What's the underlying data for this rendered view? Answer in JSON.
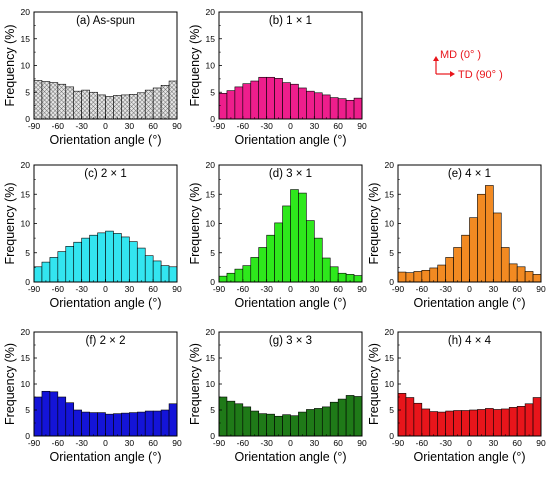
{
  "annotation": {
    "md_label": "MD (0°  )",
    "td_label": "TD (90°  )",
    "color": "#e8151b"
  },
  "chart_data": [
    {
      "type": "bar",
      "title": "(a) As-spun",
      "xlabel": "Orientation angle (°)",
      "ylabel": "Frequency (%)",
      "xlim": [
        -90,
        90
      ],
      "ylim": [
        0,
        20
      ],
      "xticks": [
        "-90",
        "-60",
        "-30",
        "0",
        "30",
        "60",
        "90"
      ],
      "yticks": [
        "0",
        "5",
        "10",
        "15",
        "20"
      ],
      "x": [
        -85,
        -75,
        -65,
        -55,
        -45,
        -35,
        -25,
        -15,
        -5,
        5,
        15,
        25,
        35,
        45,
        55,
        65,
        75,
        85
      ],
      "values": [
        7.2,
        7.0,
        6.8,
        6.5,
        6.0,
        5.2,
        5.4,
        5.0,
        4.5,
        4.2,
        4.4,
        4.5,
        4.6,
        4.9,
        5.4,
        5.8,
        6.3,
        7.1
      ],
      "color": "#d9d9d9",
      "pattern": "crosshatch"
    },
    {
      "type": "bar",
      "title": "(b) 1 × 1",
      "xlabel": "Orientation angle (°)",
      "ylabel": "Frequency (%)",
      "xlim": [
        -90,
        90
      ],
      "ylim": [
        0,
        20
      ],
      "xticks": [
        "-90",
        "-60",
        "-30",
        "0",
        "30",
        "60",
        "90"
      ],
      "yticks": [
        "0",
        "5",
        "10",
        "15",
        "20"
      ],
      "x": [
        -85,
        -75,
        -65,
        -55,
        -45,
        -35,
        -25,
        -15,
        -5,
        5,
        15,
        25,
        35,
        45,
        55,
        65,
        75,
        85
      ],
      "values": [
        4.8,
        5.3,
        6.0,
        6.6,
        7.1,
        7.8,
        7.8,
        7.6,
        6.8,
        6.5,
        5.8,
        5.2,
        4.9,
        4.5,
        4.0,
        3.8,
        3.5,
        3.9
      ],
      "color": "#ee1e8c"
    },
    {
      "type": "bar",
      "title": "(c) 2 × 1",
      "xlabel": "Orientation angle (°)",
      "ylabel": "Frequency (%)",
      "xlim": [
        -90,
        90
      ],
      "ylim": [
        0,
        20
      ],
      "xticks": [
        "-90",
        "-60",
        "-30",
        "0",
        "30",
        "60",
        "90"
      ],
      "yticks": [
        "0",
        "5",
        "10",
        "15",
        "20"
      ],
      "x": [
        -85,
        -75,
        -65,
        -55,
        -45,
        -35,
        -25,
        -15,
        -5,
        5,
        15,
        25,
        35,
        45,
        55,
        65,
        75,
        85
      ],
      "values": [
        2.6,
        3.4,
        4.2,
        5.2,
        6.1,
        6.8,
        7.5,
        8.0,
        8.4,
        8.7,
        8.3,
        7.7,
        6.9,
        5.8,
        4.5,
        3.6,
        2.8,
        2.6
      ],
      "color": "#33e5f0"
    },
    {
      "type": "bar",
      "title": "(d) 3 × 1",
      "xlabel": "Orientation angle (°)",
      "ylabel": "Frequency (%)",
      "xlim": [
        -90,
        90
      ],
      "ylim": [
        0,
        20
      ],
      "xticks": [
        "-90",
        "-60",
        "-30",
        "0",
        "30",
        "60",
        "90"
      ],
      "yticks": [
        "0",
        "5",
        "10",
        "15",
        "20"
      ],
      "x": [
        -85,
        -75,
        -65,
        -55,
        -45,
        -35,
        -25,
        -15,
        -5,
        5,
        15,
        25,
        35,
        45,
        55,
        65,
        75,
        85
      ],
      "values": [
        1.0,
        1.5,
        2.2,
        2.8,
        4.2,
        5.9,
        8.0,
        10.1,
        13.0,
        15.8,
        15.2,
        10.5,
        7.5,
        4.1,
        2.6,
        1.5,
        1.3,
        1.1
      ],
      "color": "#2ee81c"
    },
    {
      "type": "bar",
      "title": "(e) 4 × 1",
      "xlabel": "Orientation angle (°)",
      "ylabel": "Frequency (%)",
      "xlim": [
        -90,
        90
      ],
      "ylim": [
        0,
        20
      ],
      "xticks": [
        "-90",
        "-60",
        "-30",
        "0",
        "30",
        "60",
        "90"
      ],
      "yticks": [
        "0",
        "5",
        "10",
        "15",
        "20"
      ],
      "x": [
        -85,
        -75,
        -65,
        -55,
        -45,
        -35,
        -25,
        -15,
        -5,
        5,
        15,
        25,
        35,
        45,
        55,
        65,
        75,
        85
      ],
      "values": [
        1.7,
        1.6,
        1.8,
        2.0,
        2.4,
        2.9,
        4.2,
        5.9,
        8.0,
        11.0,
        15.0,
        16.5,
        11.8,
        5.9,
        3.1,
        2.6,
        1.8,
        1.3
      ],
      "color": "#f28a22"
    },
    {
      "type": "bar",
      "title": "(f) 2 × 2",
      "xlabel": "Orientation angle (°)",
      "ylabel": "Frequency (%)",
      "xlim": [
        -90,
        90
      ],
      "ylim": [
        0,
        20
      ],
      "xticks": [
        "-90",
        "-60",
        "-30",
        "0",
        "30",
        "60",
        "90"
      ],
      "yticks": [
        "0",
        "5",
        "10",
        "15",
        "20"
      ],
      "x": [
        -85,
        -75,
        -65,
        -55,
        -45,
        -35,
        -25,
        -15,
        -5,
        5,
        15,
        25,
        35,
        45,
        55,
        65,
        75,
        85
      ],
      "values": [
        7.5,
        8.6,
        8.5,
        7.5,
        6.4,
        5.0,
        4.6,
        4.5,
        4.5,
        4.2,
        4.3,
        4.4,
        4.5,
        4.6,
        4.8,
        4.8,
        5.0,
        6.2
      ],
      "color": "#1414d8"
    },
    {
      "type": "bar",
      "title": "(g) 3 × 3",
      "xlabel": "Orientation angle (°)",
      "ylabel": "Frequency (%)",
      "xlim": [
        -90,
        90
      ],
      "ylim": [
        0,
        20
      ],
      "xticks": [
        "-90",
        "-60",
        "-30",
        "0",
        "30",
        "60",
        "90"
      ],
      "yticks": [
        "0",
        "5",
        "10",
        "15",
        "20"
      ],
      "x": [
        -85,
        -75,
        -65,
        -55,
        -45,
        -35,
        -25,
        -15,
        -5,
        5,
        15,
        25,
        35,
        45,
        55,
        65,
        75,
        85
      ],
      "values": [
        7.5,
        6.7,
        6.2,
        5.6,
        4.8,
        4.3,
        4.2,
        3.8,
        4.1,
        3.9,
        4.6,
        5.1,
        5.3,
        5.6,
        6.5,
        7.1,
        7.8,
        7.6
      ],
      "color": "#1f7a18"
    },
    {
      "type": "bar",
      "title": "(h) 4 × 4",
      "xlabel": "Orientation angle (°)",
      "ylabel": "Frequency (%)",
      "xlim": [
        -90,
        90
      ],
      "ylim": [
        0,
        20
      ],
      "xticks": [
        "-90",
        "-60",
        "-30",
        "0",
        "30",
        "60",
        "90"
      ],
      "yticks": [
        "0",
        "5",
        "10",
        "15",
        "20"
      ],
      "x": [
        -85,
        -75,
        -65,
        -55,
        -45,
        -35,
        -25,
        -15,
        -5,
        5,
        15,
        25,
        35,
        45,
        55,
        65,
        75,
        85
      ],
      "values": [
        8.2,
        7.4,
        6.3,
        5.2,
        4.7,
        4.6,
        4.8,
        4.9,
        4.9,
        5.0,
        5.1,
        5.3,
        5.1,
        5.2,
        5.5,
        5.7,
        6.2,
        7.4
      ],
      "color": "#e8151b"
    }
  ]
}
